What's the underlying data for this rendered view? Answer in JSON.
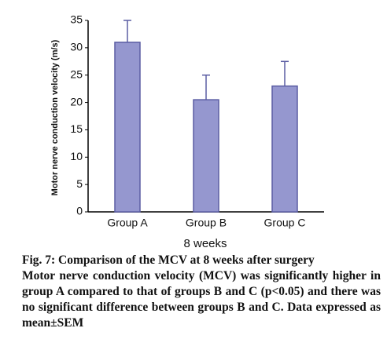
{
  "chart_data": {
    "type": "bar",
    "y_label": "Motor nerve conduction velocity (m/s)",
    "x_label": "8 weeks",
    "categories": [
      "Group A",
      "Group B",
      "Group C"
    ],
    "values": [
      31,
      20.5,
      23
    ],
    "errors": [
      4,
      4.5,
      4.5
    ],
    "color": "#9597cf",
    "edge_color": "#5b5da3",
    "ylim": [
      0,
      35
    ],
    "yticks": [
      0,
      5,
      10,
      15,
      20,
      25,
      30,
      35
    ],
    "grid": false
  },
  "caption": {
    "title": "Fig. 7: Comparison of the MCV at 8 weeks after surgery",
    "body": "Motor nerve conduction velocity (MCV) was significantly higher in group A compared to that of groups B and C (p<0.05) and there was no significant difference between groups B and C. Data expressed as mean±SEM"
  }
}
